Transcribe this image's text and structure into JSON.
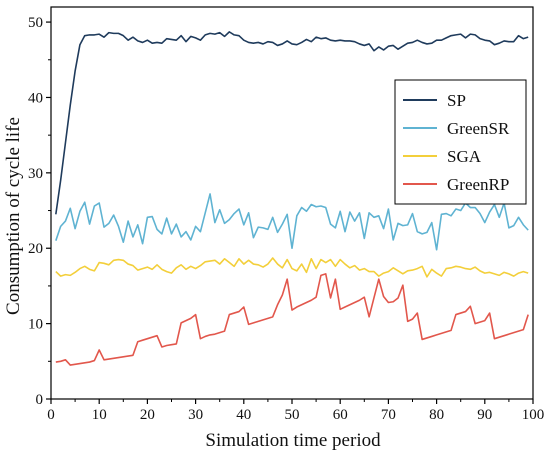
{
  "chart_data": {
    "type": "line",
    "title": "",
    "xlabel": "Simulation time period",
    "ylabel": "Consumption of cycle life",
    "xlim": [
      0,
      100
    ],
    "ylim": [
      0,
      52
    ],
    "xticks": [
      0,
      10,
      20,
      30,
      40,
      50,
      60,
      70,
      80,
      90,
      100
    ],
    "yticks": [
      0,
      10,
      20,
      30,
      40,
      50
    ],
    "grid": false,
    "legend_position": "right",
    "x": [
      1,
      2,
      3,
      4,
      5,
      6,
      7,
      8,
      9,
      10,
      11,
      12,
      13,
      14,
      15,
      16,
      17,
      18,
      19,
      20,
      21,
      22,
      23,
      24,
      25,
      26,
      27,
      28,
      29,
      30,
      31,
      32,
      33,
      34,
      35,
      36,
      37,
      38,
      39,
      40,
      41,
      42,
      43,
      44,
      45,
      46,
      47,
      48,
      49,
      50,
      51,
      52,
      53,
      54,
      55,
      56,
      57,
      58,
      59,
      60,
      61,
      62,
      63,
      64,
      65,
      66,
      67,
      68,
      69,
      70,
      71,
      72,
      73,
      74,
      75,
      76,
      77,
      78,
      79,
      80,
      81,
      82,
      83,
      84,
      85,
      86,
      87,
      88,
      89,
      90,
      91,
      92,
      93,
      94,
      95,
      96,
      97,
      98,
      99
    ],
    "series": [
      {
        "name": "SP",
        "color": "#1f3b5c",
        "values": [
          24.5,
          29,
          34,
          39,
          43.5,
          47,
          48.2,
          48.3,
          48.3,
          48.4,
          48,
          48.6,
          48.5,
          48.5,
          48.2,
          47.6,
          48,
          47.5,
          47.3,
          47.6,
          47.2,
          47.3,
          47.2,
          47.8,
          47.7,
          47.6,
          48.2,
          47.4,
          48.1,
          47.9,
          47.6,
          48.3,
          48.5,
          48.4,
          48.6,
          48.1,
          48.7,
          48.3,
          48.2,
          47.6,
          47.3,
          47.2,
          47.3,
          47.1,
          47.4,
          47.3,
          46.9,
          47.1,
          47.5,
          47.1,
          47,
          47.3,
          47.7,
          47.4,
          48,
          47.8,
          47.9,
          47.6,
          47.5,
          47.6,
          47.5,
          47.5,
          47.4,
          47.1,
          46.9,
          47.1,
          46.2,
          46.7,
          46.3,
          46.8,
          46.9,
          46.4,
          46.8,
          47.2,
          47.3,
          47.6,
          47.3,
          47.1,
          47.2,
          47.6,
          47.6,
          47.9,
          48.2,
          48.3,
          48.4,
          47.9,
          48.4,
          48.3,
          47.8,
          47.6,
          47.5,
          47,
          47.2,
          47.5,
          47.4,
          47.4,
          48.2,
          47.8,
          48
        ]
      },
      {
        "name": "GreenSR",
        "color": "#5fb3d2",
        "values": [
          21,
          22.9,
          23.6,
          25.3,
          22.6,
          24.9,
          26.1,
          23.2,
          25.6,
          26,
          22.8,
          23.3,
          24.4,
          22.9,
          20.8,
          23.6,
          21.5,
          23.1,
          20.6,
          24.1,
          24.2,
          22.5,
          21.9,
          24,
          21.9,
          23.2,
          21.5,
          22.2,
          21.1,
          22.9,
          22.2,
          24.7,
          27.2,
          23.4,
          25.1,
          23.3,
          23.8,
          24.6,
          25.2,
          23.1,
          24.7,
          21.4,
          22.8,
          22.7,
          22.5,
          24.1,
          22.1,
          23.2,
          24.5,
          20,
          24.3,
          25.4,
          24.9,
          25.8,
          25.5,
          25.6,
          25.4,
          23.2,
          22.7,
          24.9,
          22.2,
          24.8,
          23.6,
          24.7,
          21.3,
          24.7,
          24.1,
          24.3,
          22.6,
          25.2,
          21.1,
          23.3,
          23,
          23.1,
          24.6,
          22.2,
          21.9,
          22.1,
          23.4,
          19.8,
          24.5,
          24.6,
          24.3,
          25.2,
          25,
          26,
          25.4,
          25.4,
          24.6,
          23.4,
          24.8,
          25.8,
          24.1,
          26,
          22.7,
          23,
          24.1,
          23.1,
          22.4
        ]
      },
      {
        "name": "SGA",
        "color": "#f3cf3b",
        "values": [
          16.9,
          16.3,
          16.5,
          16.4,
          16.8,
          17.3,
          17.6,
          17.2,
          17,
          18.1,
          18,
          17.8,
          18.4,
          18.5,
          18.4,
          17.9,
          17.7,
          17.1,
          17.3,
          17.5,
          17.2,
          17.8,
          17.2,
          16.9,
          16.7,
          17.4,
          17.8,
          17.2,
          17.6,
          17.3,
          17.7,
          18.2,
          18.3,
          18.4,
          17.9,
          18.6,
          18.1,
          17.6,
          18.6,
          17.9,
          18.4,
          17.9,
          17.8,
          17.5,
          17.9,
          18.7,
          17.9,
          17.4,
          18.5,
          17.3,
          17,
          17.9,
          16.8,
          18.6,
          17.3,
          18.5,
          18.1,
          18.5,
          17.6,
          18.5,
          17.9,
          17.4,
          17.7,
          17.1,
          17.3,
          16.9,
          16.9,
          16.3,
          16.7,
          16.9,
          17.4,
          17,
          16.6,
          17,
          17.1,
          17.3,
          17.6,
          16.2,
          17.2,
          16.7,
          16.3,
          17.3,
          17.4,
          17.6,
          17.5,
          17.3,
          17.2,
          17.5,
          17,
          16.7,
          16.8,
          16.6,
          16.4,
          16.8,
          16.6,
          16.3,
          16.7,
          16.9,
          16.7
        ]
      },
      {
        "name": "GreenRP",
        "color": "#e2574c",
        "values": [
          4.9,
          5,
          5.2,
          4.5,
          4.6,
          4.7,
          4.8,
          4.9,
          5.1,
          6.5,
          5.2,
          5.3,
          5.4,
          5.5,
          5.6,
          5.7,
          5.8,
          7.6,
          7.8,
          8,
          8.2,
          8.4,
          6.9,
          7.1,
          7.2,
          7.3,
          10.1,
          10.4,
          10.7,
          11.2,
          8,
          8.3,
          8.5,
          8.6,
          8.8,
          9,
          11.2,
          11.4,
          11.6,
          12.2,
          9.9,
          10.1,
          10.3,
          10.5,
          10.7,
          10.9,
          12.5,
          13.8,
          15.9,
          11.8,
          12.2,
          12.5,
          12.8,
          13.1,
          13.5,
          16.4,
          16.6,
          13.4,
          15.9,
          11.9,
          12.2,
          12.5,
          12.8,
          13.1,
          13.5,
          10.9,
          13.4,
          15.9,
          13.6,
          12.8,
          12.9,
          13.4,
          15.1,
          10.3,
          10.6,
          11.4,
          7.9,
          8.1,
          8.3,
          8.5,
          8.7,
          8.9,
          9.1,
          11.2,
          11.4,
          11.6,
          12.3,
          10,
          10.2,
          10.4,
          11.4,
          8,
          8.2,
          8.4,
          8.6,
          8.8,
          9,
          9.2,
          11.2
        ]
      }
    ]
  }
}
